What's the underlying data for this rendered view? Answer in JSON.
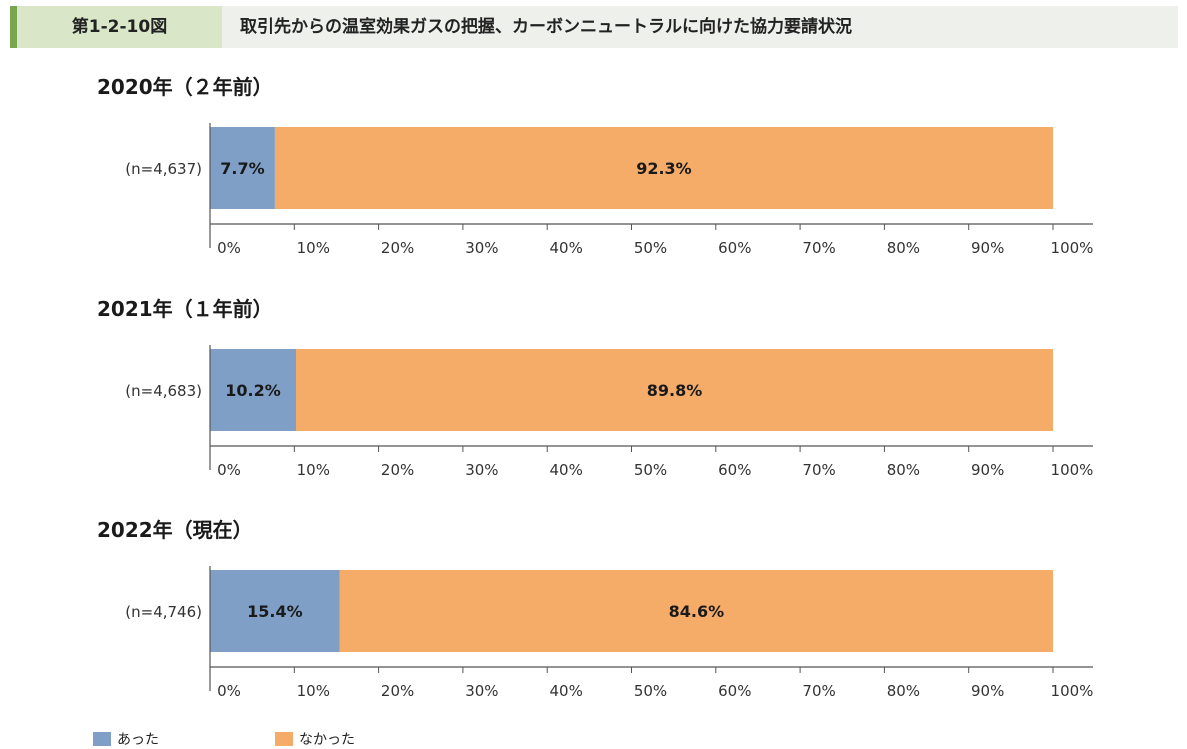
{
  "header": {
    "figure_number": "第1-2-10図",
    "title": "取引先からの温室効果ガスの把握、カーボンニュートラルに向けた協力要請状況"
  },
  "colors": {
    "yes": "#7f9fc7",
    "no": "#f5ac68",
    "axis": "#555555"
  },
  "chart_data": [
    {
      "type": "bar",
      "orientation": "horizontal",
      "stacked": true,
      "title": "2020年（２年前）",
      "categories": [
        "(n=4,637)"
      ],
      "series": [
        {
          "name": "あった",
          "values": [
            7.7
          ],
          "labels": [
            "7.7%"
          ]
        },
        {
          "name": "なかった",
          "values": [
            92.3
          ],
          "labels": [
            "92.3%"
          ]
        }
      ],
      "xlim": [
        0,
        100
      ],
      "xticks": [
        "0%",
        "10%",
        "20%",
        "30%",
        "40%",
        "50%",
        "60%",
        "70%",
        "80%",
        "90%",
        "100%"
      ],
      "grid": false
    },
    {
      "type": "bar",
      "orientation": "horizontal",
      "stacked": true,
      "title": "2021年（１年前）",
      "categories": [
        "(n=4,683)"
      ],
      "series": [
        {
          "name": "あった",
          "values": [
            10.2
          ],
          "labels": [
            "10.2%"
          ]
        },
        {
          "name": "なかった",
          "values": [
            89.8
          ],
          "labels": [
            "89.8%"
          ]
        }
      ],
      "xlim": [
        0,
        100
      ],
      "xticks": [
        "0%",
        "10%",
        "20%",
        "30%",
        "40%",
        "50%",
        "60%",
        "70%",
        "80%",
        "90%",
        "100%"
      ],
      "grid": false
    },
    {
      "type": "bar",
      "orientation": "horizontal",
      "stacked": true,
      "title": "2022年（現在）",
      "categories": [
        "(n=4,746)"
      ],
      "series": [
        {
          "name": "あった",
          "values": [
            15.4
          ],
          "labels": [
            "15.4%"
          ]
        },
        {
          "name": "なかった",
          "values": [
            84.6
          ],
          "labels": [
            "84.6%"
          ]
        }
      ],
      "xlim": [
        0,
        100
      ],
      "xticks": [
        "0%",
        "10%",
        "20%",
        "30%",
        "40%",
        "50%",
        "60%",
        "70%",
        "80%",
        "90%",
        "100%"
      ],
      "grid": false
    }
  ],
  "legend": {
    "position": "bottom-left",
    "items": [
      {
        "label": "あった"
      },
      {
        "label": "なかった"
      }
    ]
  }
}
